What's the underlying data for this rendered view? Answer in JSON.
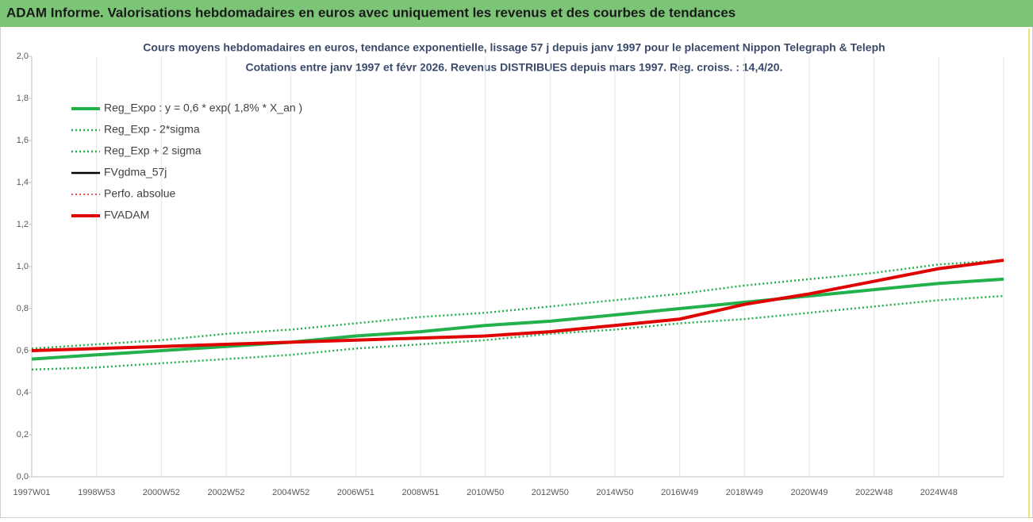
{
  "header": {
    "title": "ADAM Informe. Valorisations hebdomadaires en euros avec uniquement les revenus et des courbes de tendances"
  },
  "chart_data": {
    "type": "line",
    "title": "Cours moyens hebdomadaires en euros, tendance exponentielle, lissage 57 j depuis janv 1997 pour le placement Nippon Telegraph & Teleph",
    "subtitle": "Cotations entre janv 1997 et févr 2026. Revenus DISTRIBUES depuis mars 1997. Reg. croiss. : 14,4/20.",
    "categories": [
      "1997W01",
      "1998W53",
      "2000W52",
      "2002W52",
      "2004W52",
      "2006W51",
      "2008W51",
      "2010W50",
      "2012W50",
      "2014W50",
      "2016W49",
      "2018W49",
      "2020W49",
      "2022W48",
      "2024W48",
      null
    ],
    "ylim": [
      0,
      2
    ],
    "yticks": [
      {
        "value": 0,
        "label": "0,0"
      },
      {
        "value": 0.2,
        "label": "0,2"
      },
      {
        "value": 0.4,
        "label": "0,4"
      },
      {
        "value": 0.6,
        "label": "0,6"
      },
      {
        "value": 0.8,
        "label": "0,8"
      },
      {
        "value": 1,
        "label": "1,0"
      },
      {
        "value": 1.2,
        "label": "1,2"
      },
      {
        "value": 1.4,
        "label": "1,4"
      },
      {
        "value": 1.6,
        "label": "1,6"
      },
      {
        "value": 1.8,
        "label": "1,8"
      },
      {
        "value": 2,
        "label": "2,0"
      }
    ],
    "grid": true,
    "legend": "top-left",
    "series": [
      {
        "name": "Reg_Expo : y = 0,6 * exp( 1,8% *  X_an )",
        "color": "#22b14c",
        "style": "solid",
        "width": 4,
        "values": [
          0.56,
          0.58,
          0.6,
          0.62,
          0.64,
          0.67,
          0.69,
          0.72,
          0.74,
          0.77,
          0.8,
          0.83,
          0.86,
          0.89,
          0.92,
          0.94
        ]
      },
      {
        "name": "Reg_Exp - 2*sigma",
        "color": "#22b14c",
        "style": "dotted",
        "width": 2.5,
        "values": [
          0.51,
          0.52,
          0.54,
          0.56,
          0.58,
          0.61,
          0.63,
          0.65,
          0.68,
          0.7,
          0.73,
          0.75,
          0.78,
          0.81,
          0.84,
          0.86
        ]
      },
      {
        "name": "Reg_Exp + 2 sigma",
        "color": "#22b14c",
        "style": "dotted",
        "width": 2.5,
        "values": [
          0.61,
          0.63,
          0.65,
          0.68,
          0.7,
          0.73,
          0.76,
          0.78,
          0.81,
          0.84,
          0.87,
          0.91,
          0.94,
          0.97,
          1.01,
          1.03
        ]
      },
      {
        "name": "FVgdma_57j",
        "color": "#000000",
        "style": "solid",
        "width": 2.5,
        "values": [
          0.6,
          0.61,
          0.62,
          0.63,
          0.64,
          0.65,
          0.66,
          0.67,
          0.69,
          0.72,
          0.75,
          0.82,
          0.87,
          0.93,
          0.99,
          1.03
        ]
      },
      {
        "name": "Perfo. absolue",
        "color": "#e02020",
        "style": "dotted",
        "width": 1.5,
        "values": [
          0.6,
          0.61,
          0.62,
          0.63,
          0.64,
          0.65,
          0.66,
          0.67,
          0.69,
          0.72,
          0.75,
          0.82,
          0.87,
          0.93,
          0.99,
          1.03
        ]
      },
      {
        "name": "FVADAM",
        "color": "#e00000",
        "style": "solid",
        "width": 4,
        "values": [
          0.6,
          0.61,
          0.62,
          0.63,
          0.64,
          0.65,
          0.66,
          0.67,
          0.69,
          0.72,
          0.75,
          0.82,
          0.87,
          0.93,
          0.99,
          1.03
        ]
      }
    ]
  }
}
